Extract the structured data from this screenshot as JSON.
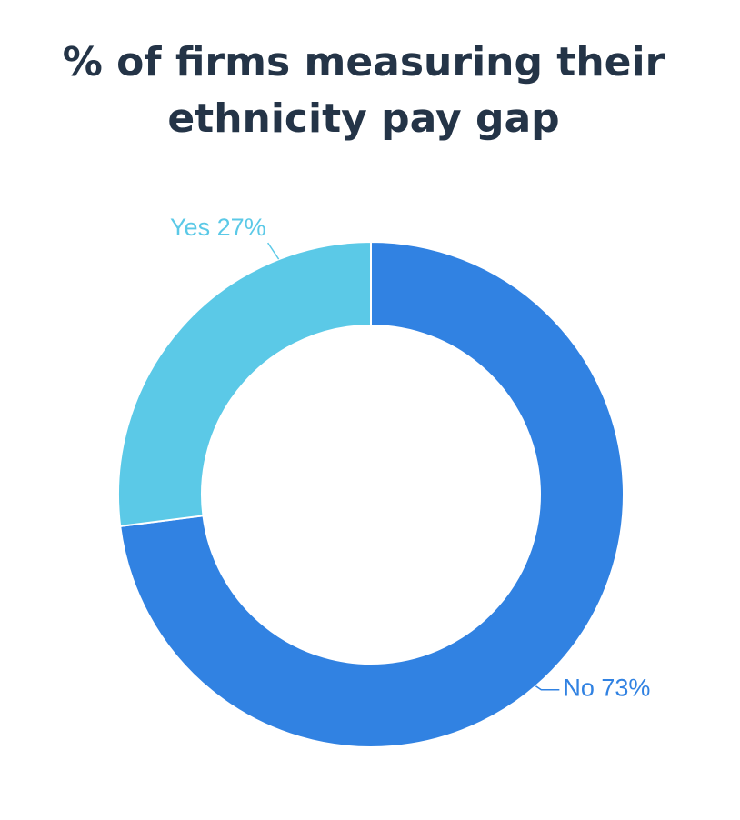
{
  "chart_data": {
    "type": "pie",
    "title_lines": [
      "% of firms measuring their",
      "ethnicity pay gap"
    ],
    "donut": true,
    "slices": [
      {
        "label": "No",
        "value": 73,
        "text": "No 73%",
        "color": "#3182e2"
      },
      {
        "label": "Yes",
        "value": 27,
        "text": "Yes 27%",
        "color": "#5bc9e7"
      }
    ],
    "start": "12 o'clock",
    "direction": "clockwise"
  }
}
